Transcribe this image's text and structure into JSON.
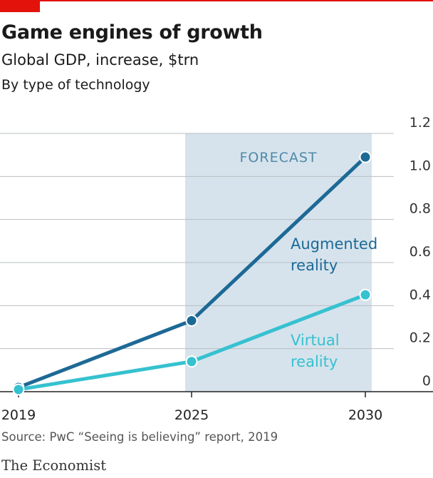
{
  "header": {
    "title": "Game engines of growth",
    "subtitle": "Global GDP, increase, $trn",
    "subtitle2": "By type of technology"
  },
  "footer": {
    "source": "Source: PwC “Seeing is believing” report, 2019",
    "brand": "The Economist"
  },
  "colors": {
    "accent": "#e3120b",
    "augmented": "#1d6996",
    "virtual": "#36c1d0",
    "forecast_band": "#d6e3ec",
    "forecast_text": "#4f89a8",
    "grid": "#b9bfc3"
  },
  "chart_data": {
    "type": "line",
    "x": [
      2019,
      2025,
      2030
    ],
    "x_tick_labels": [
      "2019",
      "2025",
      "2030"
    ],
    "y_tick_labels": [
      "0",
      "0.2",
      "0.4",
      "0.6",
      "0.8",
      "1.0",
      "1.2"
    ],
    "ylim": [
      0,
      1.2
    ],
    "y_axis_side": "right",
    "grid": true,
    "forecast": {
      "label": "FORECAST",
      "from": 2025,
      "to": 2030
    },
    "series": [
      {
        "name": "Augmented reality",
        "label_lines": [
          "Augmented",
          "reality"
        ],
        "values": [
          0.02,
          0.33,
          1.09
        ],
        "color": "#1d6996"
      },
      {
        "name": "Virtual reality",
        "label_lines": [
          "Virtual",
          "reality"
        ],
        "values": [
          0.01,
          0.14,
          0.45
        ],
        "color": "#36c1d0"
      }
    ]
  }
}
